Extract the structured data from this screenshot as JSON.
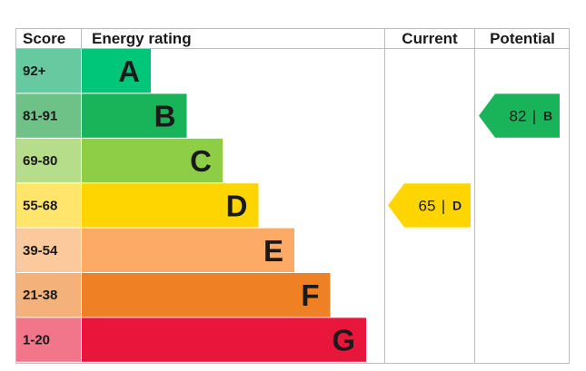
{
  "headers": {
    "score": "Score",
    "energy_rating": "Energy rating",
    "current": "Current",
    "potential": "Potential"
  },
  "chart_data": {
    "type": "bar",
    "categories": [
      "A",
      "B",
      "C",
      "D",
      "E",
      "F",
      "G"
    ],
    "score_ranges": [
      "92+",
      "81-91",
      "69-80",
      "55-68",
      "39-54",
      "21-38",
      "1-20"
    ],
    "band_colors": [
      "#00c67a",
      "#19b459",
      "#8dce46",
      "#ffd500",
      "#fcaa65",
      "#ef8023",
      "#e9153b"
    ],
    "score_colors": [
      "#67c9a0",
      "#6fc287",
      "#b5dd8a",
      "#ffe56b",
      "#fcc99d",
      "#f4b27a",
      "#f27689"
    ],
    "current": {
      "value": 65,
      "rating": "D",
      "color": "#ffd500"
    },
    "potential": {
      "value": 82,
      "rating": "B",
      "color": "#19b459"
    }
  }
}
